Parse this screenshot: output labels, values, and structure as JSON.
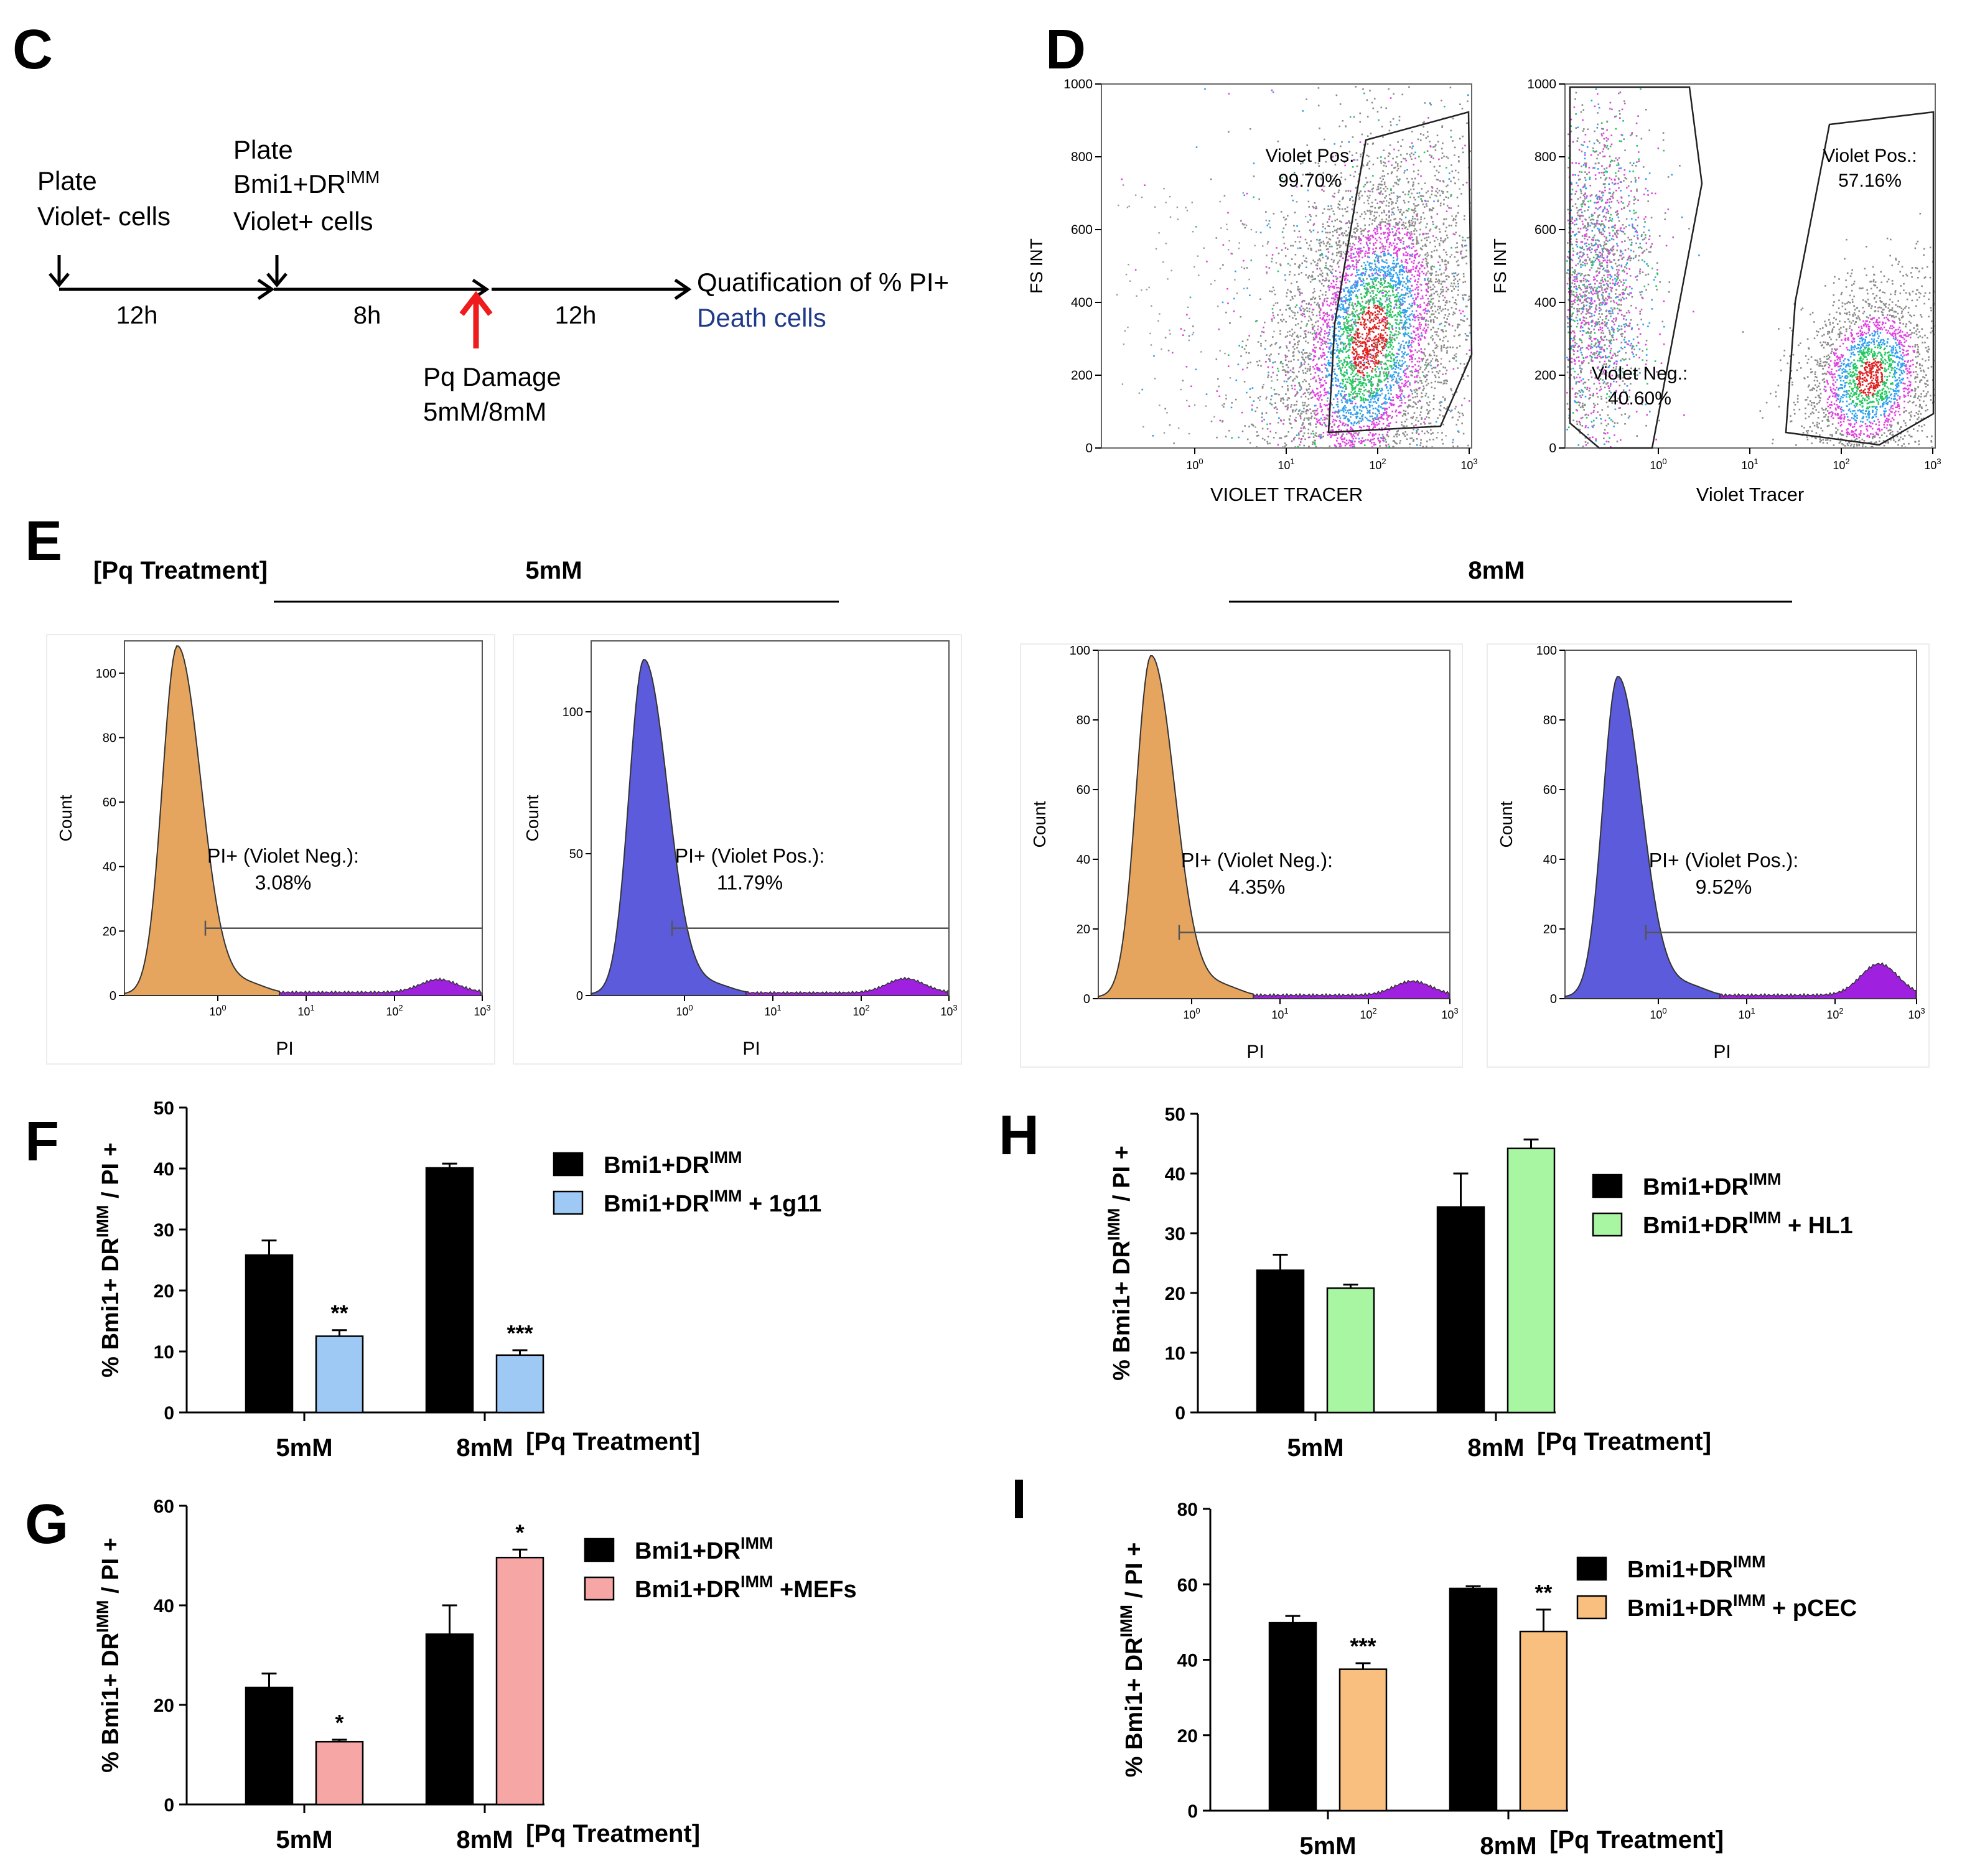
{
  "panel_letters": {
    "c": "C",
    "d": "D",
    "e": "E",
    "f": "F",
    "g": "G",
    "h": "H",
    "i": "I"
  },
  "timeline": {
    "step1": [
      "Plate",
      "Violet- cells"
    ],
    "step2": [
      "Plate",
      "Bmi1+DR",
      "IMM",
      "Violet+ cells"
    ],
    "durations": [
      "12h",
      "8h",
      "12h"
    ],
    "damage": [
      "Pq Damage",
      "5mM/8mM"
    ],
    "outcome": [
      "Quatification of % PI+",
      "Death cells"
    ],
    "colors": {
      "arrow_red": "#ee1c1c",
      "death_blue": "#1f3a8a"
    }
  },
  "panel_e_header": {
    "treatment_label": "[Pq Treatment]",
    "dose_a": "5mM",
    "dose_b": "8mM"
  },
  "chart_data": [
    {
      "id": "D1",
      "type": "scatter",
      "ylabel": "FS INT",
      "xlabel": "VIOLET TRACER",
      "yticks": [
        "0",
        "200",
        "400",
        "600",
        "800",
        "1000"
      ],
      "ylim": [
        0,
        1000
      ],
      "xticks": [
        "10",
        "0",
        "10",
        "1",
        "10",
        "2",
        "10",
        "3"
      ],
      "gate_label": "Violet Pos.",
      "gate_value": "99.70%"
    },
    {
      "id": "D2",
      "type": "scatter",
      "ylabel": "FS INT",
      "xlabel": "Violet Tracer",
      "yticks": [
        "0",
        "200",
        "400",
        "600",
        "800",
        "1000"
      ],
      "ylim": [
        0,
        1000
      ],
      "gates": [
        {
          "label": "Violet Pos.:",
          "value": "57.16%"
        },
        {
          "label": "Violet Neg.:",
          "value": "40.60%"
        }
      ]
    },
    {
      "id": "E1",
      "type": "area",
      "xlabel": "PI",
      "ylabel": "Count",
      "yticks": [
        "0",
        "20",
        "40",
        "60",
        "80",
        "100"
      ],
      "ymax": 110,
      "peak": 108,
      "gate_label": "PI+ (Violet Neg.):",
      "gate_value": "3.08%",
      "fill": "#e5a55f"
    },
    {
      "id": "E2",
      "type": "area",
      "xlabel": "PI",
      "ylabel": "Count",
      "yticks": [
        "0",
        "50",
        "100"
      ],
      "ymax": 125,
      "peak": 118,
      "gate_label": "PI+ (Violet Pos.):",
      "gate_value": "11.79%",
      "fill": "#5b5bdc"
    },
    {
      "id": "E3",
      "type": "area",
      "xlabel": "PI",
      "ylabel": "Count",
      "yticks": [
        "0",
        "20",
        "40",
        "60",
        "80",
        "100"
      ],
      "ymax": 100,
      "peak": 98,
      "gate_label": "PI+ (Violet Neg.):",
      "gate_value": "4.35%",
      "fill": "#e5a55f"
    },
    {
      "id": "E4",
      "type": "area",
      "xlabel": "PI",
      "ylabel": "Count",
      "yticks": [
        "0",
        "20",
        "40",
        "60",
        "80",
        "100"
      ],
      "ymax": 100,
      "peak": 92,
      "gate_label": "PI+ (Violet Pos.):",
      "gate_value": "9.52%",
      "fill": "#5b5bdc"
    },
    {
      "id": "F",
      "type": "bar",
      "categories": [
        "5mM",
        "8mM"
      ],
      "xlabel": "[Pq Treatment]",
      "ylabel": "% Bmi1+ DR",
      "ylabel_sup": "IMM",
      "ylabel_end": " / PI +",
      "ylim": [
        0,
        50
      ],
      "yticks": [
        "0",
        "10",
        "20",
        "30",
        "40",
        "50"
      ],
      "series": [
        {
          "name": "Bmi1+DR",
          "sup": "IMM",
          "suffix": "",
          "color": "#000000",
          "values": [
            25.8,
            40.1
          ],
          "err": [
            2.4,
            0.7
          ]
        },
        {
          "name": "Bmi1+DR",
          "sup": "IMM",
          "suffix": " + 1g11",
          "color": "#9ec9f5",
          "values": [
            12.5,
            9.4
          ],
          "err": [
            1.0,
            0.8
          ]
        }
      ],
      "sig": [
        "**",
        "***"
      ]
    },
    {
      "id": "G",
      "type": "bar",
      "categories": [
        "5mM",
        "8mM"
      ],
      "xlabel": "[Pq Treatment]",
      "ylabel": "% Bmi1+ DR",
      "ylabel_sup": "IMM",
      "ylabel_end": " / PI +",
      "ylim": [
        0,
        60
      ],
      "yticks": [
        "0",
        "20",
        "40",
        "60"
      ],
      "series": [
        {
          "name": "Bmi1+DR",
          "sup": "IMM",
          "suffix": "",
          "color": "#000000",
          "values": [
            23.5,
            34.2
          ],
          "err": [
            2.8,
            5.8
          ]
        },
        {
          "name": "Bmi1+DR",
          "sup": "IMM",
          "suffix": " +MEFs",
          "color": "#f7a6a6",
          "values": [
            12.6,
            49.6
          ],
          "err": [
            0.4,
            1.6
          ]
        }
      ],
      "sig": [
        "*",
        "*"
      ]
    },
    {
      "id": "H",
      "type": "bar",
      "categories": [
        "5mM",
        "8mM"
      ],
      "xlabel": "[Pq Treatment]",
      "ylabel": "% Bmi1+ DR",
      "ylabel_sup": "IMM",
      "ylabel_end": " / PI +",
      "ylim": [
        0,
        50
      ],
      "yticks": [
        "0",
        "10",
        "20",
        "30",
        "40",
        "50"
      ],
      "series": [
        {
          "name": "Bmi1+DR",
          "sup": "IMM",
          "suffix": "",
          "color": "#000000",
          "values": [
            23.8,
            34.4
          ],
          "err": [
            2.6,
            5.6
          ]
        },
        {
          "name": "Bmi1+DR",
          "sup": "IMM",
          "suffix": " + HL1",
          "color": "#a8f5a2",
          "values": [
            20.8,
            44.2
          ],
          "err": [
            0.6,
            1.5
          ]
        }
      ],
      "sig": [
        "",
        ""
      ]
    },
    {
      "id": "I",
      "type": "bar",
      "categories": [
        "5mM",
        "8mM"
      ],
      "xlabel": "[Pq Treatment]",
      "ylabel": "% Bmi1+ DR",
      "ylabel_sup": "IMM",
      "ylabel_end": " / PI +",
      "ylim": [
        0,
        80
      ],
      "yticks": [
        "0",
        "20",
        "40",
        "60",
        "80"
      ],
      "series": [
        {
          "name": "Bmi1+DR",
          "sup": "IMM",
          "suffix": "",
          "color": "#000000",
          "values": [
            49.8,
            58.9
          ],
          "err": [
            1.8,
            0.6
          ]
        },
        {
          "name": "Bmi1+DR",
          "sup": "IMM",
          "suffix": " + pCEC",
          "color": "#f9bf7e",
          "values": [
            37.5,
            47.5
          ],
          "err": [
            1.6,
            5.8
          ]
        }
      ],
      "sig": [
        "***",
        "**"
      ]
    }
  ]
}
